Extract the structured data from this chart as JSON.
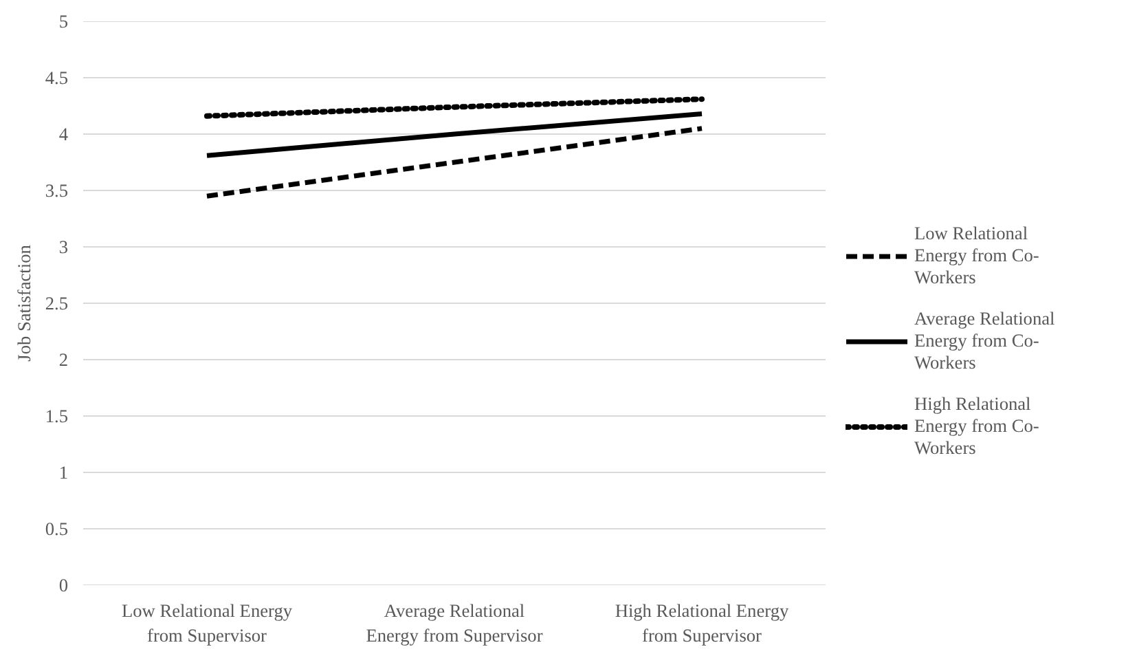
{
  "chart_data": {
    "type": "line",
    "ylabel": "Job Satisfaction",
    "categories": [
      "Low Relational Energy from Supervisor",
      "Average Relational Energy from Supervisor",
      "High Relational Energy from Supervisor"
    ],
    "series": [
      {
        "name": "Low Relational Energy from Co-Workers",
        "color": "#000000",
        "line_style": "dashed",
        "values": [
          3.45,
          3.75,
          4.05
        ]
      },
      {
        "name": "Average Relational Energy from Co-Workers",
        "color": "#000000",
        "line_style": "solid",
        "values": [
          3.81,
          4.0,
          4.18
        ]
      },
      {
        "name": "High Relational Energy from Co-Workers",
        "color": "#000000",
        "line_style": "dotted",
        "values": [
          4.16,
          4.24,
          4.31
        ]
      }
    ],
    "ylim": [
      0,
      5
    ],
    "yticks": [
      0,
      0.5,
      1,
      1.5,
      2,
      2.5,
      3,
      3.5,
      4,
      4.5,
      5
    ],
    "grid": "y",
    "legend": "right",
    "marker": "none"
  }
}
